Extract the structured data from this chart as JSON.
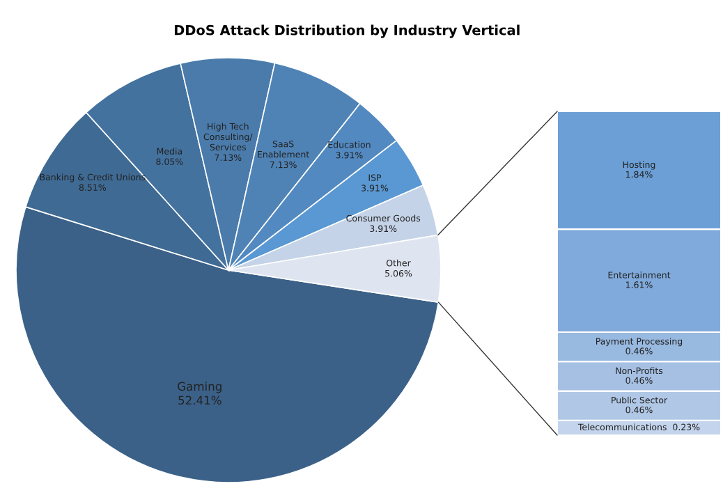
{
  "chart_data": [
    {
      "type": "pie",
      "title": "DDoS Attack Distribution by Industry Vertical",
      "categories": [
        "Gaming",
        "Banking & Credit Unions",
        "Media",
        "High Tech\nConsulting/\nServices",
        "SaaS\nEnablement",
        "Education",
        "ISP",
        "Consumer Goods",
        "Other"
      ],
      "values": [
        52.41,
        8.51,
        8.05,
        7.13,
        7.13,
        3.91,
        3.91,
        3.91,
        5.06
      ],
      "value_labels": [
        "52.41%",
        "8.51%",
        "8.05%",
        "7.13%",
        "7.13%",
        "3.91%",
        "3.91%",
        "3.91%",
        "5.06%"
      ],
      "colors": [
        "#3b6188",
        "#3f6a93",
        "#44729f",
        "#4a7bab",
        "#4f83b6",
        "#5289c0",
        "#5a98d3",
        "#c5d3e8",
        "#dfe5f0"
      ]
    },
    {
      "type": "bar",
      "stacked": true,
      "categories": [
        null
      ],
      "tick_labels": false,
      "series": [
        {
          "name": "Telecommunications",
          "color": "#c3d4ec",
          "values": [
            0.23
          ],
          "value_labels": [
            "0.23%"
          ]
        },
        {
          "name": "Public Sector",
          "color": "#b0c8e6",
          "values": [
            0.46
          ],
          "value_labels": [
            "0.46%"
          ]
        },
        {
          "name": "Non-Profits",
          "color": "#a5c0e3",
          "values": [
            0.46
          ],
          "value_labels": [
            "0.46%"
          ]
        },
        {
          "name": "Payment Processing",
          "color": "#98b9e0",
          "values": [
            0.46
          ],
          "value_labels": [
            "0.46%"
          ]
        },
        {
          "name": "Entertainment",
          "color": "#80aadb",
          "values": [
            1.61
          ],
          "value_labels": [
            "1.61%"
          ]
        },
        {
          "name": "Hosting",
          "color": "#6b9fd6",
          "values": [
            1.84
          ],
          "value_labels": [
            "1.84%"
          ]
        }
      ]
    }
  ]
}
